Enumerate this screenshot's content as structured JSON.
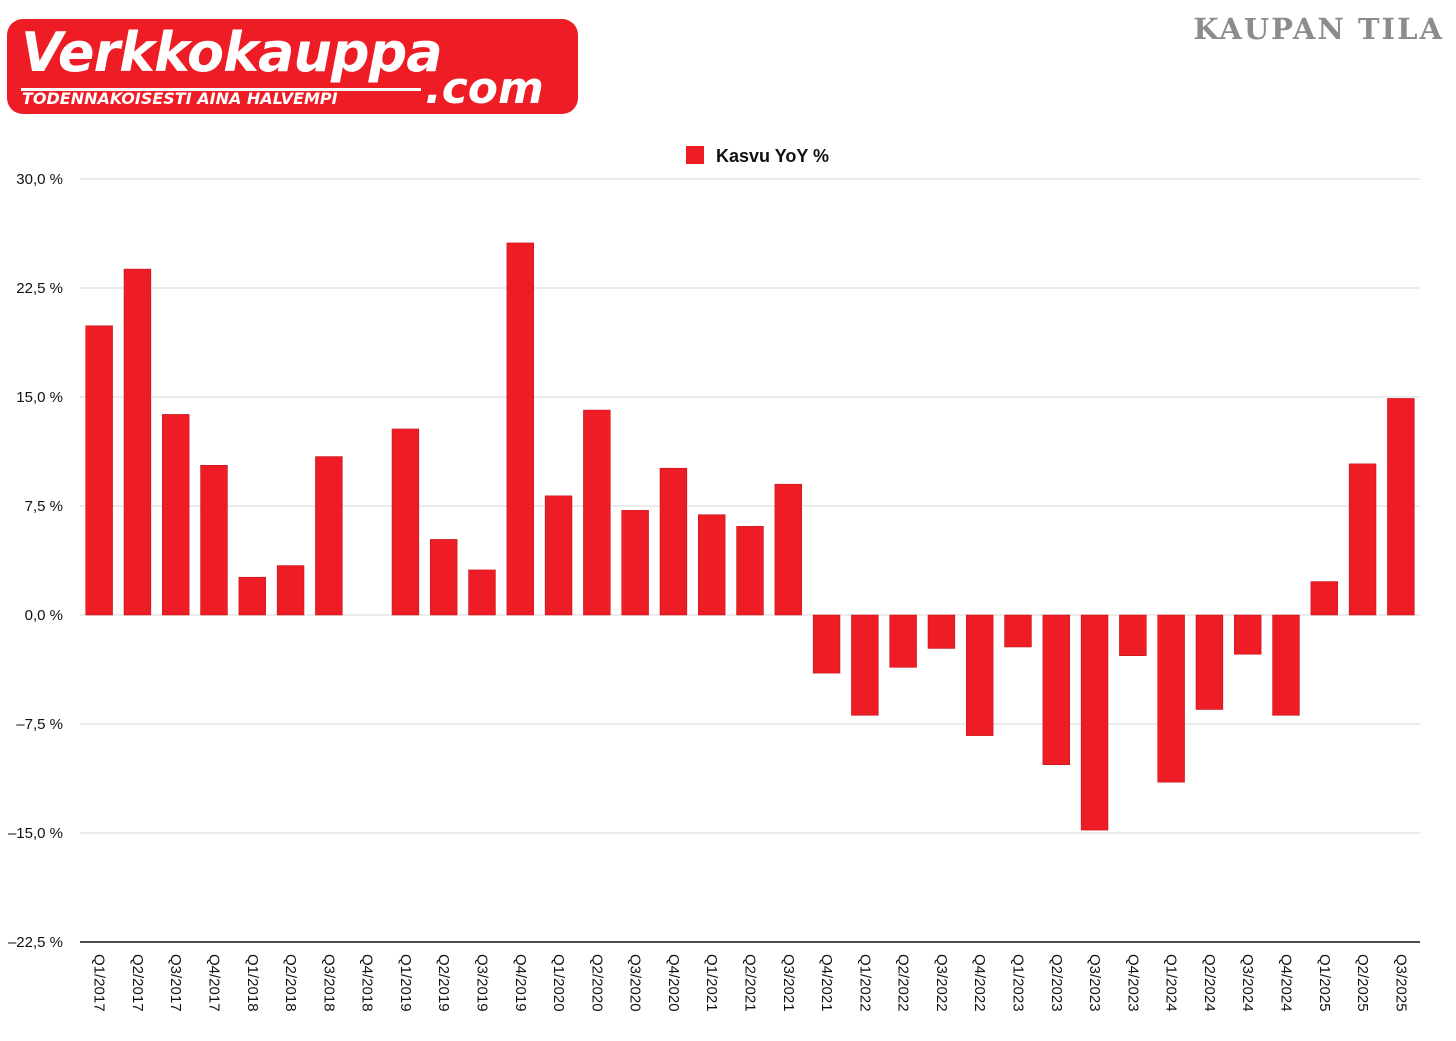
{
  "logo": {
    "name": "Verkkokauppa",
    "domain": ".com",
    "tagline": "TODENNÄKÖISESTI AINA HALVEMPI",
    "color": "#ee1c25"
  },
  "brand": {
    "title": "KAUPAN TILA"
  },
  "chart_data": {
    "type": "bar",
    "title": "",
    "xlabel": "",
    "ylabel": "",
    "ylim": [
      -22.5,
      30.0
    ],
    "yticks": [
      30.0,
      22.5,
      15.0,
      7.5,
      0.0,
      -7.5,
      -15.0,
      -22.5
    ],
    "ytick_labels": [
      "30,0 %",
      "22,5 %",
      "15,0 %",
      "7,5 %",
      "0,0 %",
      "–7,5 %",
      "–15,0 %",
      "–22,5 %"
    ],
    "grid": true,
    "legend_position": "top-center",
    "bar_color": "#ee1c25",
    "categories": [
      "Q1/2017",
      "Q2/2017",
      "Q3/2017",
      "Q4/2017",
      "Q1/2018",
      "Q2/2018",
      "Q3/2018",
      "Q4/2018",
      "Q1/2019",
      "Q2/2019",
      "Q3/2019",
      "Q4/2019",
      "Q1/2020",
      "Q2/2020",
      "Q3/2020",
      "Q4/2020",
      "Q1/2021",
      "Q2/2021",
      "Q3/2021",
      "Q4/2021",
      "Q1/2022",
      "Q2/2022",
      "Q3/2022",
      "Q4/2022",
      "Q1/2023",
      "Q2/2023",
      "Q3/2023",
      "Q4/2023",
      "Q1/2024",
      "Q2/2024",
      "Q3/2024",
      "Q4/2024",
      "Q1/2025",
      "Q2/2025",
      "Q3/2025"
    ],
    "series": [
      {
        "name": "Kasvu YoY %",
        "values": [
          19.9,
          23.8,
          13.8,
          10.3,
          2.6,
          3.4,
          10.9,
          0.0,
          12.8,
          5.2,
          3.1,
          25.6,
          8.2,
          14.1,
          7.2,
          10.1,
          6.9,
          6.1,
          9.0,
          -4.0,
          -6.9,
          -3.6,
          -2.3,
          -8.3,
          -2.2,
          -10.3,
          -14.8,
          -2.8,
          -11.5,
          -6.5,
          -2.7,
          -6.9,
          2.3,
          10.4,
          14.9
        ]
      }
    ]
  }
}
